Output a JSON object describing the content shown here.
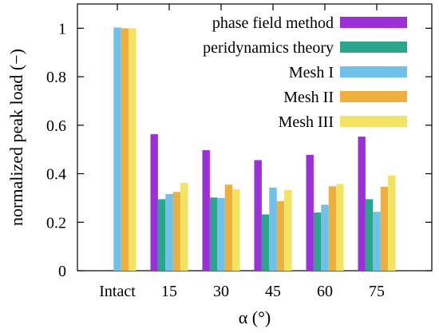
{
  "chart_data": {
    "type": "bar",
    "categories": [
      "Intact",
      "15",
      "30",
      "45",
      "60",
      "75"
    ],
    "series": [
      {
        "name": "phase field method",
        "color": "#9b30d9",
        "values": [
          null,
          0.563,
          0.497,
          0.456,
          0.478,
          0.553
        ]
      },
      {
        "name": "peridynamics theory",
        "color": "#2ca58d",
        "values": [
          null,
          0.295,
          0.302,
          0.232,
          0.24,
          0.295
        ]
      },
      {
        "name": "Mesh I",
        "color": "#6fc0ea",
        "values": [
          1.003,
          0.316,
          0.3,
          0.343,
          0.272,
          0.243
        ]
      },
      {
        "name": "Mesh II",
        "color": "#eeb03c",
        "values": [
          1.0,
          0.325,
          0.355,
          0.287,
          0.348,
          0.346
        ]
      },
      {
        "name": "Mesh III",
        "color": "#f2e463",
        "values": [
          1.0,
          0.362,
          0.336,
          0.333,
          0.358,
          0.393
        ]
      }
    ],
    "xlabel": "α (°)",
    "ylabel": "normalized peak load (−)",
    "ylim": [
      0,
      1.1
    ],
    "yticks": [
      "0",
      "0.2",
      "0.4",
      "0.6",
      "0.8",
      "1"
    ],
    "grid": false,
    "legend_position": "top-right"
  }
}
